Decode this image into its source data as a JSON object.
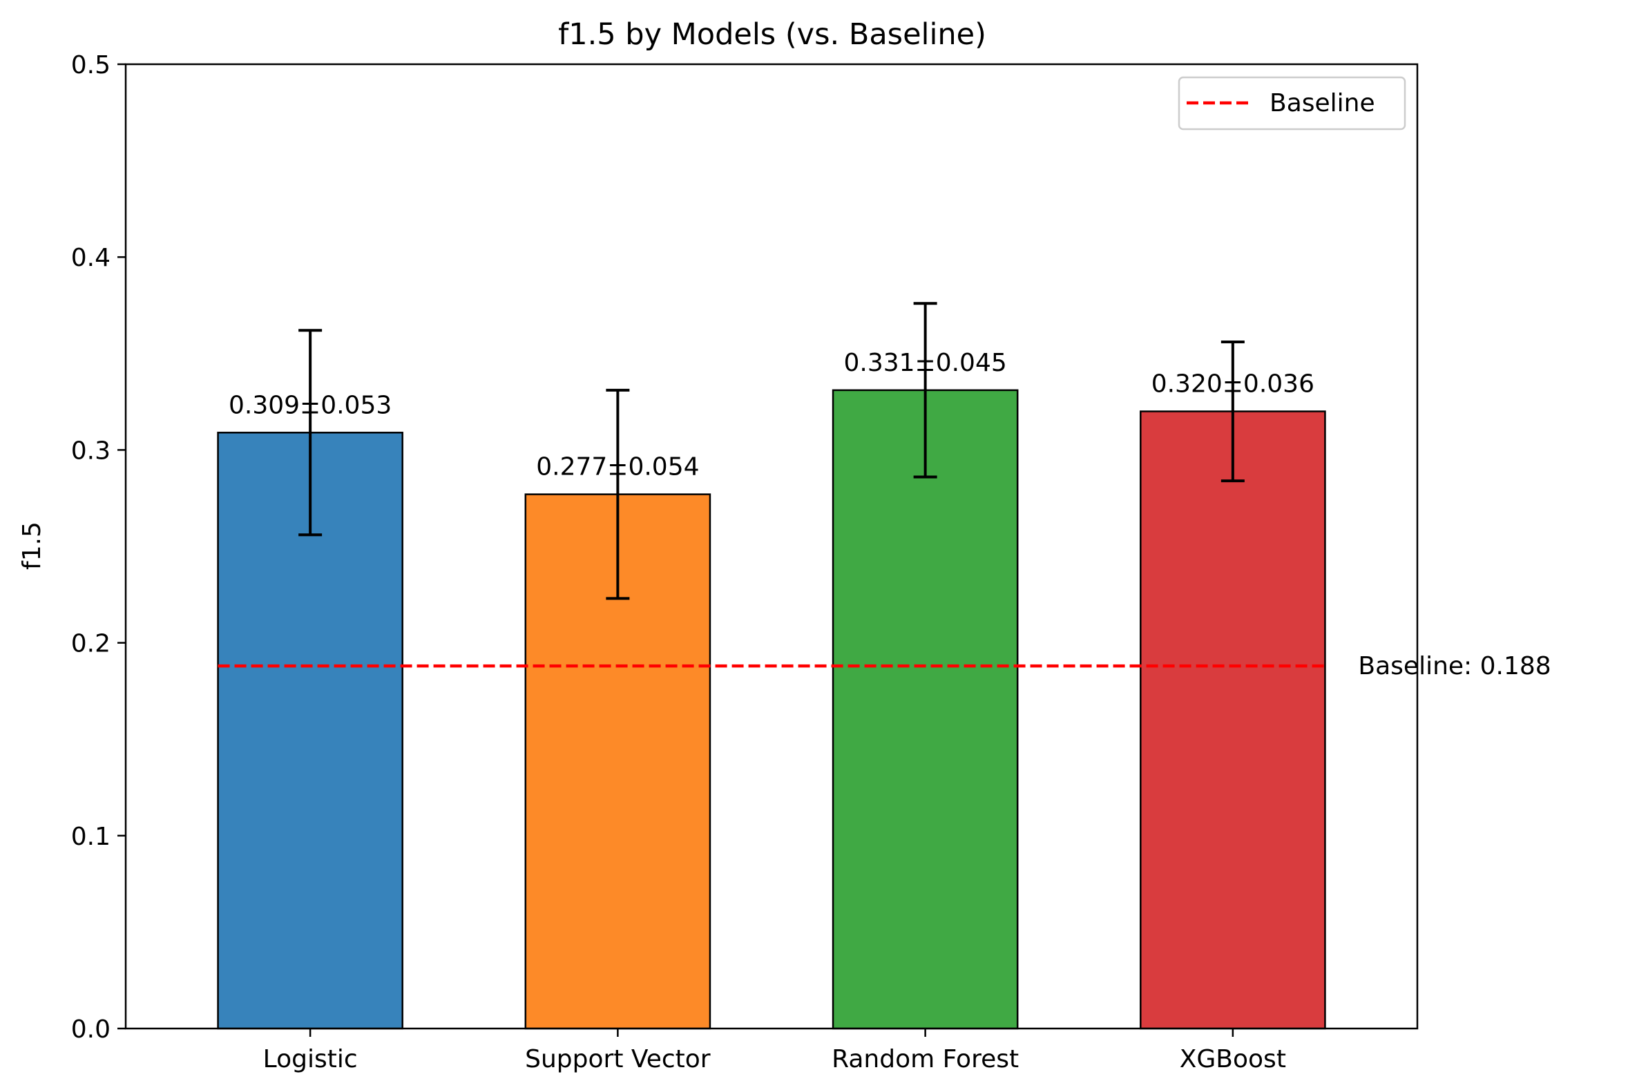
{
  "chart_data": {
    "type": "bar",
    "title": "f1.5 by Models (vs. Baseline)",
    "xlabel": "",
    "ylabel": "f1.5",
    "ylim": [
      0,
      0.5
    ],
    "yticks": [
      0.0,
      0.1,
      0.2,
      0.3,
      0.4,
      0.5
    ],
    "ytick_labels": [
      "0.0",
      "0.1",
      "0.2",
      "0.3",
      "0.4",
      "0.5"
    ],
    "categories": [
      "Logistic",
      "Support Vector",
      "Random Forest",
      "XGBoost"
    ],
    "values": [
      0.309,
      0.277,
      0.331,
      0.32
    ],
    "errors": [
      0.053,
      0.054,
      0.045,
      0.036
    ],
    "value_labels": [
      "0.309±0.053",
      "0.277±0.054",
      "0.331±0.045",
      "0.320±0.036"
    ],
    "colors": [
      "#3783bb",
      "#fd8a28",
      "#40a944",
      "#d93c3e"
    ],
    "baseline": {
      "value": 0.188,
      "label": "Baseline: 0.188",
      "legend_label": "Baseline",
      "color": "#ff0000",
      "style": "dashed"
    },
    "legend_position": "upper right",
    "grid": false
  }
}
